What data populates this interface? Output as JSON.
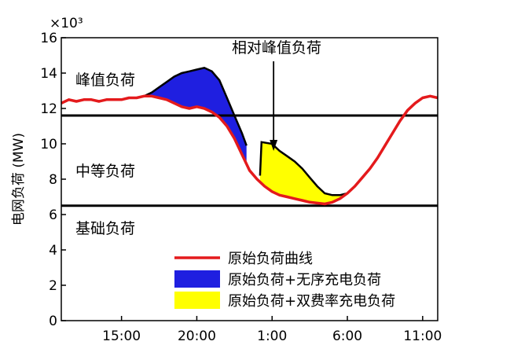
{
  "chart_data": {
    "type": "area",
    "title": "",
    "xlabel": "",
    "ylabel": "电网负荷 (MW)",
    "y_exponent": "×10³",
    "ylim": [
      0,
      16
    ],
    "yticks": [
      0,
      2,
      4,
      6,
      8,
      10,
      12,
      14,
      16
    ],
    "xlim": [
      11,
      36
    ],
    "xticks": [
      {
        "value": 15,
        "label": "15:00"
      },
      {
        "value": 20,
        "label": "20:00"
      },
      {
        "value": 25,
        "label": "1:00"
      },
      {
        "value": 30,
        "label": "6:00"
      },
      {
        "value": 35,
        "label": "11:00"
      }
    ],
    "grid": false,
    "legend_position": "bottom-right",
    "thresholds": [
      {
        "name": "peak-threshold",
        "value": 11.6
      },
      {
        "name": "base-threshold",
        "value": 6.5
      }
    ],
    "zone_labels": [
      {
        "text": "峰值负荷"
      },
      {
        "text": "中等负荷"
      },
      {
        "text": "基础负荷"
      }
    ],
    "annotation": {
      "text": "相对峰值负荷",
      "arrow_to": [
        25.1,
        9.6
      ]
    },
    "series": [
      {
        "name": "原始负荷曲线",
        "kind": "line",
        "color": "#e41a1c",
        "x": [
          11,
          11.5,
          12,
          12.5,
          13,
          13.5,
          14,
          14.5,
          15,
          15.5,
          16,
          16.5,
          17,
          17.5,
          18,
          18.5,
          19,
          19.5,
          20,
          20.5,
          21,
          21.5,
          22,
          22.5,
          23,
          23.5,
          24,
          24.5,
          25,
          25.5,
          26,
          26.5,
          27,
          27.5,
          28,
          28.5,
          29,
          29.5,
          30,
          30.5,
          31,
          31.5,
          32,
          32.5,
          33,
          33.5,
          34,
          34.5,
          35,
          35.5,
          36
        ],
        "y": [
          12.3,
          12.5,
          12.4,
          12.5,
          12.5,
          12.4,
          12.5,
          12.5,
          12.5,
          12.6,
          12.6,
          12.7,
          12.7,
          12.6,
          12.5,
          12.3,
          12.1,
          12.0,
          12.1,
          12.0,
          11.8,
          11.5,
          11.0,
          10.3,
          9.4,
          8.5,
          8.0,
          7.6,
          7.3,
          7.1,
          7.0,
          6.9,
          6.8,
          6.7,
          6.65,
          6.6,
          6.7,
          6.9,
          7.2,
          7.6,
          8.1,
          8.6,
          9.2,
          9.9,
          10.6,
          11.3,
          11.9,
          12.3,
          12.6,
          12.7,
          12.6
        ]
      },
      {
        "name": "原始负荷+无序充电负荷",
        "kind": "area",
        "color": "#1f1fe0",
        "x": [
          16.5,
          17,
          17.5,
          18,
          18.5,
          19,
          19.5,
          20,
          20.5,
          21,
          21.5,
          22,
          22.5,
          23,
          23.3
        ],
        "y": [
          12.7,
          12.9,
          13.2,
          13.5,
          13.8,
          14.0,
          14.1,
          14.2,
          14.3,
          14.1,
          13.6,
          12.6,
          11.6,
          10.6,
          9.9
        ]
      },
      {
        "name": "原始负荷+双费率充电负荷",
        "kind": "area",
        "color": "#ffff00",
        "x": [
          24.2,
          24.3,
          25,
          25.5,
          26,
          26.5,
          27,
          27.5,
          28,
          28.5,
          29,
          29.5,
          30
        ],
        "y": [
          8.2,
          10.1,
          10.0,
          9.6,
          9.3,
          9.0,
          8.6,
          8.1,
          7.6,
          7.2,
          7.1,
          7.1,
          7.2
        ]
      }
    ]
  }
}
